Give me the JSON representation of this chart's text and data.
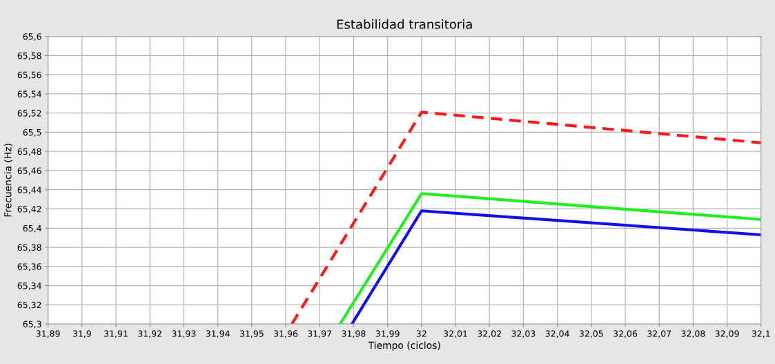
{
  "chart_data": {
    "type": "line",
    "title": "Estabilidad transitoria",
    "xlabel": "Tiempo (ciclos)",
    "ylabel": "Frecuencia (Hz)",
    "series": [
      {
        "color": "#ff1a1a",
        "line_style": "dashed",
        "x": [
          31.9618,
          32.0,
          32.1
        ],
        "values": [
          65.3,
          65.521,
          65.489
        ]
      },
      {
        "color": "#22ee22",
        "line_style": "solid",
        "x": [
          31.976,
          32.0,
          32.1
        ],
        "values": [
          65.3,
          65.436,
          65.409
        ]
      },
      {
        "color": "#1010ee",
        "line_style": "solid",
        "x": [
          31.9795,
          32.0,
          32.1
        ],
        "values": [
          65.3,
          65.418,
          65.393
        ]
      }
    ],
    "xlim": [
      31.89,
      32.1
    ],
    "ylim": [
      65.3,
      65.6
    ],
    "xticks": [
      {
        "value": 31.89,
        "label": "31,89"
      },
      {
        "value": 31.9,
        "label": "31,9"
      },
      {
        "value": 31.91,
        "label": "31,91"
      },
      {
        "value": 31.92,
        "label": "31,92"
      },
      {
        "value": 31.93,
        "label": "31,93"
      },
      {
        "value": 31.94,
        "label": "31,94"
      },
      {
        "value": 31.95,
        "label": "31,95"
      },
      {
        "value": 31.96,
        "label": "31,96"
      },
      {
        "value": 31.97,
        "label": "31,97"
      },
      {
        "value": 31.98,
        "label": "31,98"
      },
      {
        "value": 31.99,
        "label": "31,99"
      },
      32,
      {
        "value": 32.01,
        "label": "32,01"
      },
      {
        "value": 32.02,
        "label": "32,02"
      },
      {
        "value": 32.03,
        "label": "32,03"
      },
      {
        "value": 32.04,
        "label": "32,04"
      },
      {
        "value": 32.05,
        "label": "32,05"
      },
      {
        "value": 32.06,
        "label": "32,06"
      },
      {
        "value": 32.07,
        "label": "32,07"
      },
      {
        "value": 32.08,
        "label": "32,08"
      },
      {
        "value": 32.09,
        "label": "32,09"
      },
      {
        "value": 32.1,
        "label": "32,1"
      }
    ],
    "yticks": [
      {
        "value": 65.3,
        "label": "65,3"
      },
      {
        "value": 65.32,
        "label": "65,32"
      },
      {
        "value": 65.34,
        "label": "65,34"
      },
      {
        "value": 65.36,
        "label": "65,36"
      },
      {
        "value": 65.38,
        "label": "65,38"
      },
      {
        "value": 65.4,
        "label": "65,4"
      },
      {
        "value": 65.42,
        "label": "65,42"
      },
      {
        "value": 65.44,
        "label": "65,44"
      },
      {
        "value": 65.46,
        "label": "65,46"
      },
      {
        "value": 65.48,
        "label": "65,48"
      },
      {
        "value": 65.5,
        "label": "65,5"
      },
      {
        "value": 65.52,
        "label": "65,52"
      },
      {
        "value": 65.54,
        "label": "65,54"
      },
      {
        "value": 65.56,
        "label": "65,56"
      },
      {
        "value": 65.58,
        "label": "65,58"
      },
      {
        "value": 65.6,
        "label": "65,6"
      }
    ],
    "grid": true,
    "marker": "none"
  }
}
